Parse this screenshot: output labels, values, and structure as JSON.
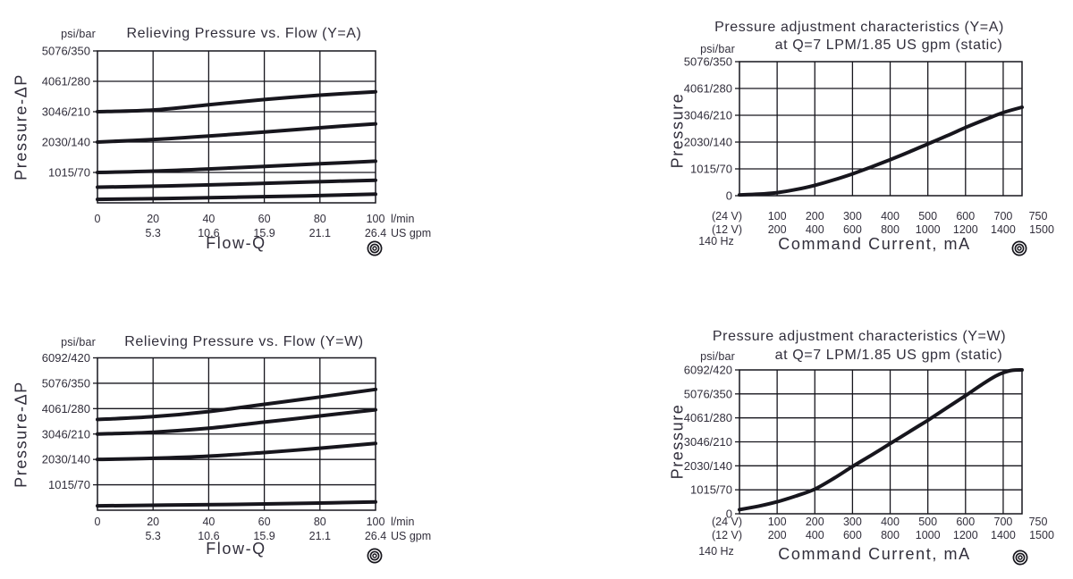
{
  "ink_color": "#312e3b",
  "line_color": "#17161d",
  "chart_data": [
    {
      "id": "relieving-pressure-flow-ya",
      "type": "line",
      "title": "Relieving Pressure vs. Flow (Y=A)",
      "unit_label": "psi/bar",
      "ylabel": "Pressure-ΔP",
      "xlabel": "Flow-Q",
      "ylim": [
        0,
        350
      ],
      "xlim": [
        0,
        100
      ],
      "y_grid": [
        70,
        140,
        210,
        280
      ],
      "x_grid": [
        20,
        40,
        60,
        80
      ],
      "grid": true,
      "legend": false,
      "icon": "target-icon",
      "y_ticks": [
        {
          "label": "5076/350",
          "value": 350
        },
        {
          "label": "4061/280",
          "value": 280
        },
        {
          "label": "3046/210",
          "value": 210
        },
        {
          "label": "2030/140",
          "value": 140
        },
        {
          "label": "1015/70",
          "value": 70
        }
      ],
      "x_rows": [
        {
          "items": [
            {
              "label": "0",
              "at": 0
            },
            {
              "label": "20",
              "at": 20
            },
            {
              "label": "40",
              "at": 40
            },
            {
              "label": "60",
              "at": 60
            },
            {
              "label": "80",
              "at": 80
            },
            {
              "label": "100",
              "at": 100
            },
            {
              "label": "l/min",
              "pos": "suffix"
            }
          ]
        },
        {
          "items": [
            {
              "label": "5.3",
              "at": 20
            },
            {
              "label": "10.6",
              "at": 40
            },
            {
              "label": "15.9",
              "at": 60
            },
            {
              "label": "21.1",
              "at": 80
            },
            {
              "label": "26.4",
              "at": 100
            },
            {
              "label": "US gpm",
              "pos": "suffix"
            }
          ]
        }
      ],
      "series": [
        {
          "name": "setting-210-bar",
          "points": [
            [
              0,
              210
            ],
            [
              20,
              214
            ],
            [
              40,
              226
            ],
            [
              60,
              238
            ],
            [
              80,
              248
            ],
            [
              100,
              256
            ]
          ]
        },
        {
          "name": "setting-140-bar",
          "points": [
            [
              0,
              140
            ],
            [
              20,
              146
            ],
            [
              40,
              154
            ],
            [
              60,
              163
            ],
            [
              80,
              173
            ],
            [
              100,
              182
            ]
          ]
        },
        {
          "name": "setting-70-bar",
          "points": [
            [
              0,
              70
            ],
            [
              20,
              73
            ],
            [
              40,
              78
            ],
            [
              60,
              84
            ],
            [
              80,
              90
            ],
            [
              100,
              96
            ]
          ]
        },
        {
          "name": "setting-35-bar",
          "points": [
            [
              0,
              36
            ],
            [
              25,
              39
            ],
            [
              50,
              43
            ],
            [
              75,
              48
            ],
            [
              100,
              52
            ]
          ]
        },
        {
          "name": "setting-min",
          "points": [
            [
              0,
              8
            ],
            [
              25,
              10
            ],
            [
              50,
              13
            ],
            [
              75,
              16
            ],
            [
              100,
              20
            ]
          ]
        }
      ]
    },
    {
      "id": "pressure-adjustment-ya",
      "type": "line",
      "title_line1": "Pressure adjustment characteristics (Y=A)",
      "title_line2": "at Q=7 LPM/1.85 US gpm (static)",
      "unit_label": "psi/bar",
      "ylabel": "Pressure",
      "xlabel": "Command Current, mA",
      "ylim": [
        0,
        350
      ],
      "xlim": [
        0,
        750
      ],
      "y_grid": [
        70,
        140,
        210,
        280
      ],
      "x_grid": [
        100,
        200,
        300,
        400,
        500,
        600,
        700
      ],
      "grid": true,
      "legend": false,
      "icon": "target-icon",
      "y_ticks": [
        {
          "label": "5076/350",
          "value": 350
        },
        {
          "label": "4061/280",
          "value": 280
        },
        {
          "label": "3046/210",
          "value": 210
        },
        {
          "label": "2030/140",
          "value": 140
        },
        {
          "label": "1015/70",
          "value": 70
        },
        {
          "label": "0",
          "value": 0
        }
      ],
      "x_rows": [
        {
          "items": [
            {
              "label": "(24 V)",
              "pos": "prefix"
            },
            {
              "label": "100",
              "at": 100
            },
            {
              "label": "200",
              "at": 200
            },
            {
              "label": "300",
              "at": 300
            },
            {
              "label": "400",
              "at": 400
            },
            {
              "label": "500",
              "at": 500
            },
            {
              "label": "600",
              "at": 600
            },
            {
              "label": "700",
              "at": 700
            },
            {
              "label": "750",
              "at": 750,
              "dx": 18
            }
          ]
        },
        {
          "items": [
            {
              "label": "(12 V)",
              "pos": "prefix"
            },
            {
              "label": "200",
              "at": 100
            },
            {
              "label": "400",
              "at": 200
            },
            {
              "label": "600",
              "at": 300
            },
            {
              "label": "800",
              "at": 400
            },
            {
              "label": "1000",
              "at": 500
            },
            {
              "label": "1200",
              "at": 600
            },
            {
              "label": "1400",
              "at": 700
            },
            {
              "label": "1500",
              "at": 750,
              "dx": 22
            }
          ]
        },
        {
          "items": [
            {
              "label": "140 Hz",
              "pos": "prefix",
              "dx": -12
            }
          ]
        }
      ],
      "series": [
        {
          "name": "pressure-vs-current",
          "points": [
            [
              0,
              2
            ],
            [
              50,
              4
            ],
            [
              100,
              8
            ],
            [
              150,
              16
            ],
            [
              200,
              27
            ],
            [
              250,
              41
            ],
            [
              300,
              57
            ],
            [
              350,
              75
            ],
            [
              400,
              94
            ],
            [
              450,
              114
            ],
            [
              500,
              135
            ],
            [
              550,
              156
            ],
            [
              600,
              178
            ],
            [
              650,
              198
            ],
            [
              700,
              217
            ],
            [
              750,
              231
            ]
          ]
        }
      ]
    },
    {
      "id": "relieving-pressure-flow-yw",
      "type": "line",
      "title": "Relieving Pressure vs. Flow (Y=W)",
      "unit_label": "psi/bar",
      "ylabel": "Pressure-ΔP",
      "xlabel": "Flow-Q",
      "ylim": [
        0,
        420
      ],
      "xlim": [
        0,
        100
      ],
      "y_grid": [
        70,
        140,
        210,
        280,
        350
      ],
      "x_grid": [
        20,
        40,
        60,
        80
      ],
      "grid": true,
      "legend": false,
      "icon": "target-icon",
      "y_ticks": [
        {
          "label": "6092/420",
          "value": 420
        },
        {
          "label": "5076/350",
          "value": 350
        },
        {
          "label": "4061/280",
          "value": 280
        },
        {
          "label": "3046/210",
          "value": 210
        },
        {
          "label": "2030/140",
          "value": 140
        },
        {
          "label": "1015/70",
          "value": 70
        }
      ],
      "x_rows": [
        {
          "items": [
            {
              "label": "0",
              "at": 0
            },
            {
              "label": "20",
              "at": 20
            },
            {
              "label": "40",
              "at": 40
            },
            {
              "label": "60",
              "at": 60
            },
            {
              "label": "80",
              "at": 80
            },
            {
              "label": "100",
              "at": 100
            },
            {
              "label": "l/min",
              "pos": "suffix"
            }
          ]
        },
        {
          "items": [
            {
              "label": "5.3",
              "at": 20
            },
            {
              "label": "10.6",
              "at": 40
            },
            {
              "label": "15.9",
              "at": 60
            },
            {
              "label": "21.1",
              "at": 80
            },
            {
              "label": "26.4",
              "at": 100
            },
            {
              "label": "US gpm",
              "pos": "suffix"
            }
          ]
        }
      ],
      "series": [
        {
          "name": "setting-250-bar",
          "points": [
            [
              0,
              250
            ],
            [
              20,
              258
            ],
            [
              40,
              272
            ],
            [
              60,
              292
            ],
            [
              80,
              312
            ],
            [
              100,
              333
            ]
          ]
        },
        {
          "name": "setting-210-bar",
          "points": [
            [
              0,
              210
            ],
            [
              20,
              215
            ],
            [
              40,
              226
            ],
            [
              60,
              243
            ],
            [
              80,
              260
            ],
            [
              100,
              277
            ]
          ]
        },
        {
          "name": "setting-140-bar",
          "points": [
            [
              0,
              140
            ],
            [
              20,
              143
            ],
            [
              40,
              149
            ],
            [
              60,
              159
            ],
            [
              80,
              171
            ],
            [
              100,
              184
            ]
          ]
        },
        {
          "name": "setting-min",
          "points": [
            [
              0,
              12
            ],
            [
              25,
              14
            ],
            [
              50,
              16
            ],
            [
              75,
              19
            ],
            [
              100,
              23
            ]
          ]
        }
      ]
    },
    {
      "id": "pressure-adjustment-yw",
      "type": "line",
      "title_line1": "Pressure adjustment characteristics (Y=W)",
      "title_line2": "at Q=7 LPM/1.85 US gpm (static)",
      "unit_label": "psi/bar",
      "ylabel": "Pressure",
      "xlabel": "Command Current, mA",
      "ylim": [
        0,
        420
      ],
      "xlim": [
        0,
        750
      ],
      "y_grid": [
        70,
        140,
        210,
        280,
        350
      ],
      "x_grid": [
        100,
        200,
        300,
        400,
        500,
        600,
        700
      ],
      "grid": true,
      "legend": false,
      "icon": "target-icon",
      "y_ticks": [
        {
          "label": "6092/420",
          "value": 420
        },
        {
          "label": "5076/350",
          "value": 350
        },
        {
          "label": "4061/280",
          "value": 280
        },
        {
          "label": "3046/210",
          "value": 210
        },
        {
          "label": "2030/140",
          "value": 140
        },
        {
          "label": "1015/70",
          "value": 70
        },
        {
          "label": "0",
          "value": 0
        }
      ],
      "x_rows": [
        {
          "items": [
            {
              "label": "(24 V)",
              "pos": "prefix"
            },
            {
              "label": "100",
              "at": 100
            },
            {
              "label": "200",
              "at": 200
            },
            {
              "label": "300",
              "at": 300
            },
            {
              "label": "400",
              "at": 400
            },
            {
              "label": "500",
              "at": 500
            },
            {
              "label": "600",
              "at": 600
            },
            {
              "label": "700",
              "at": 700
            },
            {
              "label": "750",
              "at": 750,
              "dx": 18
            }
          ]
        },
        {
          "items": [
            {
              "label": "(12 V)",
              "pos": "prefix"
            },
            {
              "label": "200",
              "at": 100
            },
            {
              "label": "400",
              "at": 200
            },
            {
              "label": "600",
              "at": 300
            },
            {
              "label": "800",
              "at": 400
            },
            {
              "label": "1000",
              "at": 500
            },
            {
              "label": "1200",
              "at": 600
            },
            {
              "label": "1400",
              "at": 700
            },
            {
              "label": "1500",
              "at": 750,
              "dx": 22
            }
          ]
        },
        {
          "items": [
            {
              "label": "140 Hz",
              "pos": "prefix",
              "dx": -12
            }
          ]
        }
      ],
      "series": [
        {
          "name": "pressure-vs-current",
          "points": [
            [
              0,
              12
            ],
            [
              50,
              22
            ],
            [
              100,
              35
            ],
            [
              150,
              52
            ],
            [
              200,
              72
            ],
            [
              250,
              103
            ],
            [
              300,
              138
            ],
            [
              350,
              171
            ],
            [
              400,
              205
            ],
            [
              450,
              239
            ],
            [
              500,
              273
            ],
            [
              550,
              309
            ],
            [
              600,
              345
            ],
            [
              650,
              382
            ],
            [
              680,
              402
            ],
            [
              700,
              412
            ],
            [
              725,
              419
            ],
            [
              750,
              420
            ]
          ]
        }
      ]
    }
  ]
}
